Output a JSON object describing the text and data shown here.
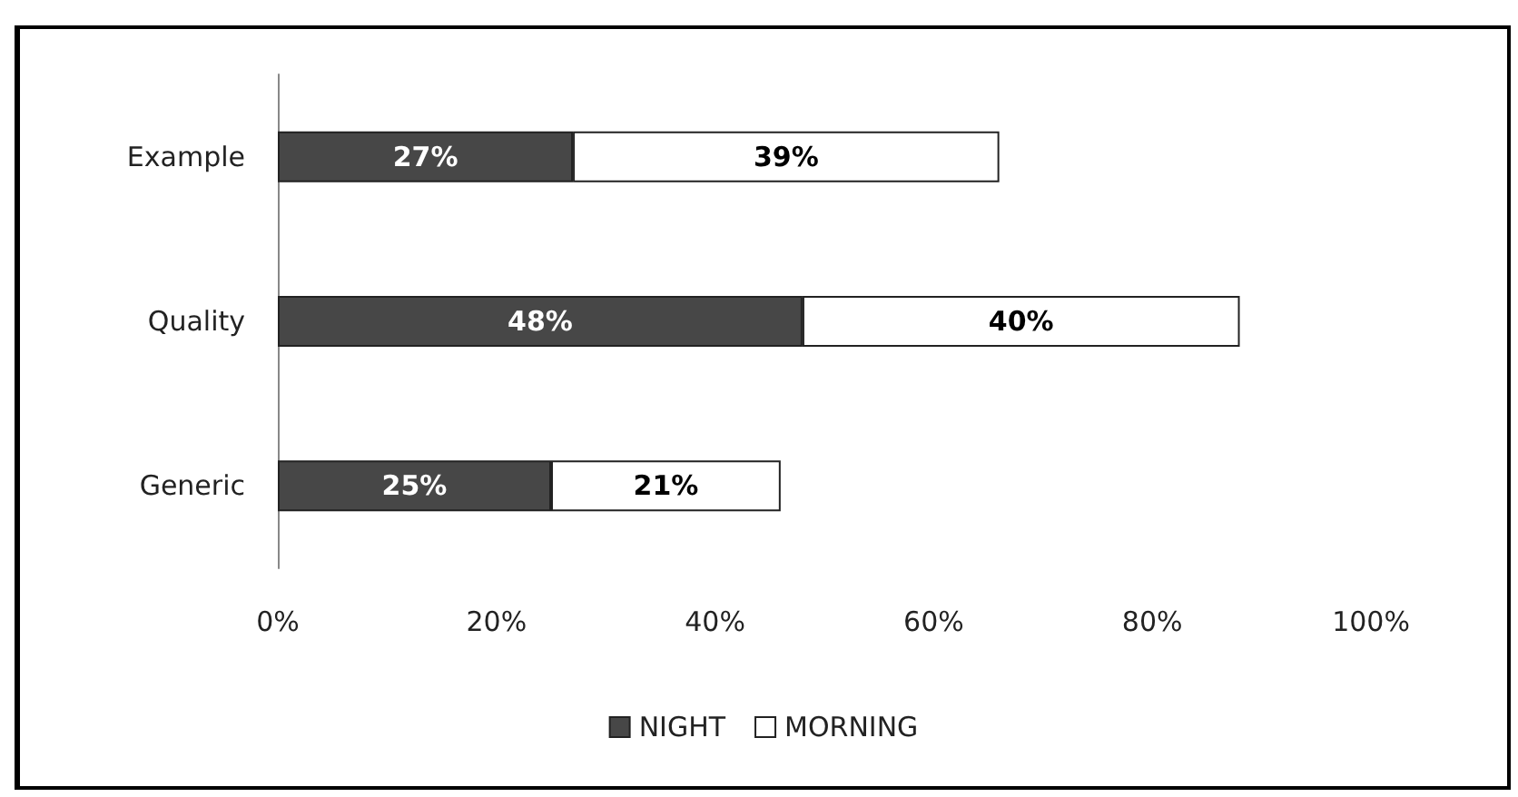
{
  "chart_data": {
    "type": "bar",
    "orientation": "horizontal",
    "stacked": true,
    "categories": [
      "Example",
      "Quality",
      "Generic"
    ],
    "series": [
      {
        "name": "NIGHT",
        "color": "#474747",
        "values": [
          27,
          48,
          25
        ],
        "value_labels": [
          "27%",
          "48%",
          "25%"
        ]
      },
      {
        "name": "MORNING",
        "color": "#ffffff",
        "values": [
          39,
          40,
          21
        ],
        "value_labels": [
          "39%",
          "40%",
          "21%"
        ]
      }
    ],
    "xlim": [
      0,
      100
    ],
    "xticks": [
      {
        "value": 0,
        "label": "0%"
      },
      {
        "value": 20,
        "label": "20%"
      },
      {
        "value": 40,
        "label": "40%"
      },
      {
        "value": 60,
        "label": "60%"
      },
      {
        "value": 80,
        "label": "80%"
      },
      {
        "value": 100,
        "label": "100%"
      }
    ],
    "grid": false,
    "legend": "bottom"
  }
}
